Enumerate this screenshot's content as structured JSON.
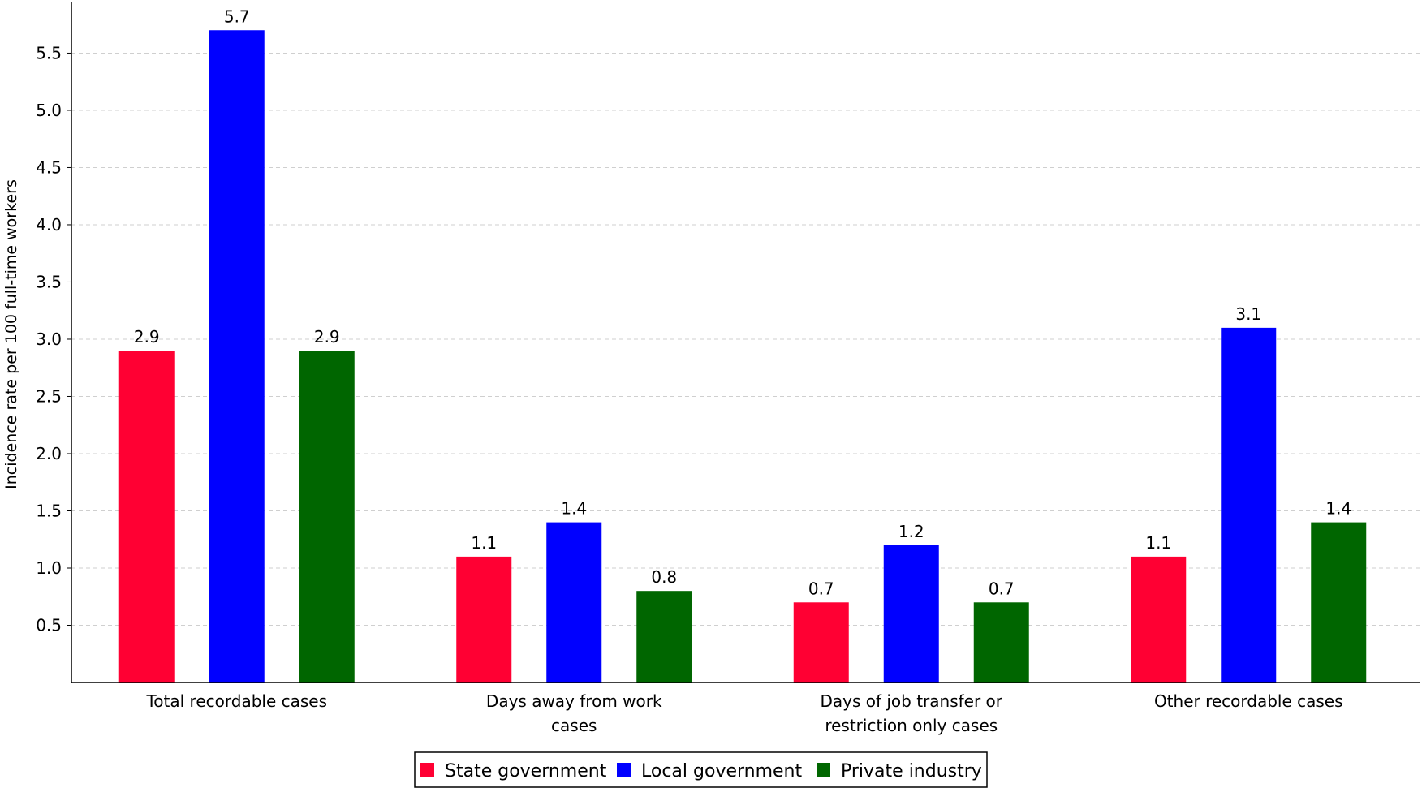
{
  "chart_data": {
    "type": "bar",
    "title": "",
    "xlabel": "",
    "ylabel": "Incidence rate per 100 full-time workers",
    "categories": [
      [
        "Total recordable cases"
      ],
      [
        "Days away from work",
        "cases"
      ],
      [
        "Days of job transfer or",
        "restriction only cases"
      ],
      [
        "Other recordable cases"
      ]
    ],
    "series": [
      {
        "name": "State government",
        "color": "#ff0033",
        "values": [
          2.9,
          1.1,
          0.7,
          1.1
        ]
      },
      {
        "name": "Local government",
        "color": "#0000ff",
        "values": [
          5.7,
          1.4,
          1.2,
          3.1
        ]
      },
      {
        "name": "Private industry",
        "color": "#006600",
        "values": [
          2.9,
          0.8,
          0.7,
          1.4
        ]
      }
    ],
    "ylim": [
      0,
      5.95
    ],
    "yticks": [
      "0.5",
      "1.0",
      "1.5",
      "2.0",
      "2.5",
      "3.0",
      "3.5",
      "4.0",
      "4.5",
      "5.0",
      "5.5"
    ],
    "grid": true,
    "legend_position": "bottom-center"
  }
}
